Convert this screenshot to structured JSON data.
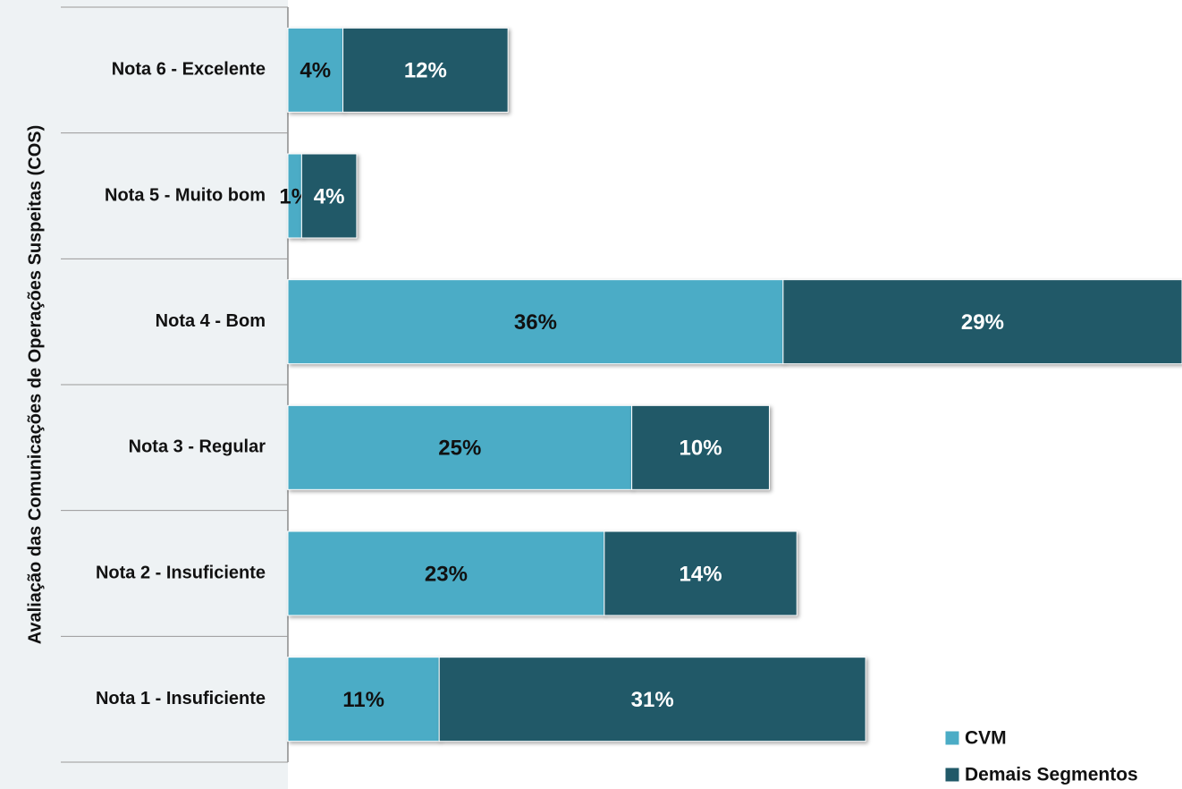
{
  "chart_data": {
    "type": "stacked-barh",
    "y_label": "Avaliação das Comunicações de Operações Suspeitas (COS)",
    "categories": [
      "Nota 6 - Excelente",
      "Nota 5 - Muito bom",
      "Nota 4 - Bom",
      "Nota 3 - Regular",
      "Nota 2 - Insuficiente",
      "Nota 1 - Insuficiente"
    ],
    "series": [
      {
        "name": "CVM",
        "color": "#4bacc6",
        "label_color": "#111111",
        "values": [
          4,
          1,
          36,
          25,
          23,
          11
        ],
        "value_labels": [
          "4%",
          "1%",
          "36%",
          "25%",
          "23%",
          "11%"
        ]
      },
      {
        "name": "Demais Segmentos",
        "color": "#215968",
        "label_color": "#ffffff",
        "values": [
          12,
          4,
          29,
          10,
          14,
          31
        ],
        "value_labels": [
          "12%",
          "4%",
          "29%",
          "10%",
          "14%",
          "31%"
        ]
      }
    ],
    "legend": "lower right"
  }
}
